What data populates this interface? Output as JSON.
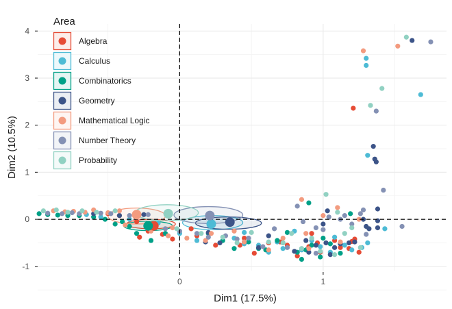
{
  "chart_data": {
    "type": "scatter",
    "title": "",
    "xlabel": "Dim1 (17.5%)",
    "ylabel": "Dim2 (10.5%)",
    "xlim": [
      -0.99,
      1.86
    ],
    "ylim": [
      -1.09,
      4.15
    ],
    "x_ticks": [
      0,
      1
    ],
    "x_tick_labels": [
      "0",
      "1"
    ],
    "y_ticks": [
      -1,
      0,
      1,
      2,
      3,
      4
    ],
    "y_tick_labels": [
      "-1",
      "0",
      "1",
      "2",
      "3",
      "4"
    ],
    "grid": true,
    "reference_lines": {
      "x": 0,
      "y": 0,
      "style": "dashed"
    },
    "legend": {
      "title": "Area",
      "placement": "top-left",
      "entries": [
        {
          "name": "Algebra",
          "color": "#E64B35"
        },
        {
          "name": "Calculus",
          "color": "#4DBBD5"
        },
        {
          "name": "Combinatorics",
          "color": "#00A087"
        },
        {
          "name": "Geometry",
          "color": "#3C5488"
        },
        {
          "name": "Mathematical Logic",
          "color": "#F39B7F"
        },
        {
          "name": "Number Theory",
          "color": "#8491B4"
        },
        {
          "name": "Probability",
          "color": "#91D1C2"
        }
      ]
    },
    "centroids": [
      {
        "group": "Algebra",
        "x": -0.18,
        "y": -0.14
      },
      {
        "group": "Calculus",
        "x": 0.22,
        "y": -0.1
      },
      {
        "group": "Combinatorics",
        "x": -0.22,
        "y": -0.14
      },
      {
        "group": "Geometry",
        "x": 0.35,
        "y": -0.06
      },
      {
        "group": "Mathematical Logic",
        "x": -0.3,
        "y": 0.1
      },
      {
        "group": "Number Theory",
        "x": 0.21,
        "y": 0.08
      },
      {
        "group": "Probability",
        "x": -0.08,
        "y": 0.12
      }
    ],
    "ellipses": [
      {
        "group": "Algebra",
        "cx": -0.2,
        "cy": -0.1,
        "rx": 0.17,
        "ry": 0.1
      },
      {
        "group": "Calculus",
        "cx": 0.23,
        "cy": -0.07,
        "rx": 0.21,
        "ry": 0.15
      },
      {
        "group": "Combinatorics",
        "cx": -0.22,
        "cy": -0.14,
        "rx": 0.17,
        "ry": 0.1
      },
      {
        "group": "Geometry",
        "cx": 0.34,
        "cy": -0.08,
        "rx": 0.23,
        "ry": 0.13
      },
      {
        "group": "Mathematical Logic",
        "cx": -0.3,
        "cy": 0.07,
        "rx": 0.2,
        "ry": 0.17
      },
      {
        "group": "Number Theory",
        "cx": 0.2,
        "cy": 0.09,
        "rx": 0.24,
        "ry": 0.18
      },
      {
        "group": "Probability",
        "cx": -0.09,
        "cy": 0.14,
        "rx": 0.22,
        "ry": 0.17
      }
    ],
    "series": [
      {
        "name": "Algebra",
        "points": [
          [
            -0.5,
            0.12
          ],
          [
            -0.42,
            0.08
          ],
          [
            -0.3,
            -0.05
          ],
          [
            -0.28,
            -0.38
          ],
          [
            -0.22,
            -0.25
          ],
          [
            -0.12,
            -0.32
          ],
          [
            -0.05,
            -0.42
          ],
          [
            0.08,
            -0.2
          ],
          [
            0.12,
            -0.35
          ],
          [
            0.25,
            -0.55
          ],
          [
            0.42,
            -0.55
          ],
          [
            0.45,
            -0.4
          ],
          [
            0.52,
            -0.72
          ],
          [
            0.62,
            -0.5
          ],
          [
            0.7,
            -0.48
          ],
          [
            0.75,
            -0.55
          ],
          [
            0.82,
            -0.78
          ],
          [
            0.9,
            -0.58
          ],
          [
            0.96,
            -0.5
          ],
          [
            0.98,
            -0.7
          ],
          [
            1.08,
            -0.45
          ],
          [
            1.12,
            -0.6
          ],
          [
            1.2,
            -0.47
          ],
          [
            1.22,
            -0.42
          ],
          [
            1.18,
            -0.62
          ],
          [
            0.92,
            -0.3
          ],
          [
            1.21,
            2.36
          ],
          [
            1.25,
            -0.7
          ]
        ]
      },
      {
        "name": "Calculus",
        "points": [
          [
            -0.65,
            0.1
          ],
          [
            -0.55,
            0.05
          ],
          [
            -0.35,
            0.0
          ],
          [
            -0.15,
            -0.08
          ],
          [
            0.0,
            -0.3
          ],
          [
            0.12,
            -0.45
          ],
          [
            0.22,
            -0.06
          ],
          [
            0.38,
            -0.4
          ],
          [
            0.45,
            -0.52
          ],
          [
            0.55,
            -0.55
          ],
          [
            0.62,
            -0.7
          ],
          [
            0.68,
            -0.48
          ],
          [
            0.72,
            -0.62
          ],
          [
            0.8,
            -0.25
          ],
          [
            0.85,
            -0.65
          ],
          [
            0.92,
            -0.45
          ],
          [
            0.98,
            -0.58
          ],
          [
            1.05,
            -0.7
          ],
          [
            1.08,
            -0.38
          ],
          [
            1.15,
            -0.55
          ],
          [
            1.2,
            -0.65
          ],
          [
            1.27,
            -0.6
          ],
          [
            1.3,
            3.42
          ],
          [
            1.3,
            3.27
          ],
          [
            1.31,
            1.36
          ],
          [
            1.31,
            -0.5
          ],
          [
            1.43,
            -0.2
          ],
          [
            1.68,
            2.65
          ],
          [
            0.45,
            -0.28
          ]
        ]
      },
      {
        "name": "Combinatorics",
        "points": [
          [
            -0.98,
            0.12
          ],
          [
            -0.92,
            0.1
          ],
          [
            -0.85,
            0.09
          ],
          [
            -0.78,
            0.08
          ],
          [
            -0.7,
            0.08
          ],
          [
            -0.6,
            0.05
          ],
          [
            -0.52,
            0.0
          ],
          [
            -0.45,
            -0.1
          ],
          [
            -0.4,
            -0.05
          ],
          [
            -0.35,
            -0.15
          ],
          [
            -0.3,
            -0.3
          ],
          [
            -0.22,
            -0.14
          ],
          [
            -0.1,
            -0.3
          ],
          [
            -0.2,
            -0.45
          ],
          [
            0.2,
            -0.3
          ],
          [
            0.3,
            -0.45
          ],
          [
            0.38,
            -0.62
          ],
          [
            0.48,
            -0.48
          ],
          [
            0.55,
            -0.62
          ],
          [
            0.6,
            -0.65
          ],
          [
            0.68,
            -0.45
          ],
          [
            0.75,
            -0.28
          ],
          [
            0.82,
            -0.7
          ],
          [
            0.88,
            -0.65
          ],
          [
            0.92,
            -0.55
          ],
          [
            0.98,
            -0.8
          ],
          [
            1.05,
            -0.52
          ],
          [
            1.12,
            -0.72
          ],
          [
            1.0,
            -0.4
          ],
          [
            0.9,
            0.35
          ],
          [
            1.19,
            0.12
          ],
          [
            0.85,
            -0.85
          ]
        ]
      },
      {
        "name": "Geometry",
        "points": [
          [
            -0.6,
            0.12
          ],
          [
            -0.42,
            0.08
          ],
          [
            -0.25,
            0.1
          ],
          [
            0.18,
            -0.48
          ],
          [
            0.2,
            -0.28
          ],
          [
            0.28,
            -0.5
          ],
          [
            0.35,
            -0.06
          ],
          [
            0.45,
            -0.48
          ],
          [
            0.55,
            -0.6
          ],
          [
            0.62,
            -0.35
          ],
          [
            0.72,
            -0.5
          ],
          [
            0.8,
            -0.68
          ],
          [
            0.88,
            -0.45
          ],
          [
            0.95,
            -0.55
          ],
          [
            1.0,
            -0.1
          ],
          [
            1.02,
            -0.5
          ],
          [
            1.08,
            -0.6
          ],
          [
            1.12,
            -0.52
          ],
          [
            1.18,
            -0.5
          ],
          [
            1.22,
            -0.48
          ],
          [
            1.28,
            0.0
          ],
          [
            1.3,
            -0.15
          ],
          [
            1.32,
            -0.2
          ],
          [
            1.35,
            1.55
          ],
          [
            1.36,
            1.28
          ],
          [
            1.37,
            1.22
          ],
          [
            1.38,
            -0.03
          ],
          [
            1.38,
            -0.18
          ],
          [
            1.38,
            0.22
          ],
          [
            1.62,
            3.8
          ],
          [
            1.03,
            0.18
          ],
          [
            0.9,
            -0.7
          ],
          [
            1.05,
            -0.75
          ]
        ]
      },
      {
        "name": "Mathematical Logic",
        "points": [
          [
            -0.88,
            0.18
          ],
          [
            -0.8,
            0.16
          ],
          [
            -0.74,
            0.17
          ],
          [
            -0.66,
            0.15
          ],
          [
            -0.6,
            0.2
          ],
          [
            -0.5,
            0.14
          ],
          [
            -0.42,
            0.18
          ],
          [
            -0.38,
            -0.12
          ],
          [
            -0.3,
            0.1
          ],
          [
            -0.2,
            -0.25
          ],
          [
            -0.08,
            -0.35
          ],
          [
            -0.05,
            -0.18
          ],
          [
            0.05,
            -0.4
          ],
          [
            0.18,
            -0.45
          ],
          [
            0.22,
            -0.3
          ],
          [
            0.38,
            -0.25
          ],
          [
            0.45,
            -0.48
          ],
          [
            0.62,
            -0.65
          ],
          [
            0.72,
            -0.4
          ],
          [
            0.85,
            0.42
          ],
          [
            0.88,
            -0.3
          ],
          [
            0.9,
            -0.62
          ],
          [
            1.0,
            0.08
          ],
          [
            1.12,
            -0.48
          ],
          [
            1.28,
            3.58
          ],
          [
            1.52,
            3.68
          ],
          [
            1.25,
            0.0
          ],
          [
            1.1,
            0.25
          ]
        ]
      },
      {
        "name": "Number Theory",
        "points": [
          [
            -0.92,
            0.13
          ],
          [
            -0.82,
            0.12
          ],
          [
            -0.75,
            0.14
          ],
          [
            -0.7,
            0.12
          ],
          [
            -0.55,
            0.13
          ],
          [
            -0.48,
            0.12
          ],
          [
            -0.35,
            0.08
          ],
          [
            -0.22,
            0.1
          ],
          [
            -0.1,
            -0.2
          ],
          [
            0.0,
            -0.25
          ],
          [
            0.12,
            -0.3
          ],
          [
            0.2,
            -0.38
          ],
          [
            0.21,
            0.08
          ],
          [
            0.32,
            -0.35
          ],
          [
            0.4,
            -0.42
          ],
          [
            0.48,
            -0.4
          ],
          [
            0.58,
            -0.58
          ],
          [
            0.66,
            -0.2
          ],
          [
            0.75,
            -0.6
          ],
          [
            0.82,
            0.28
          ],
          [
            0.86,
            -0.05
          ],
          [
            0.95,
            -0.18
          ],
          [
            1.0,
            -0.22
          ],
          [
            1.04,
            0.05
          ],
          [
            1.12,
            0.0
          ],
          [
            1.15,
            0.08
          ],
          [
            1.2,
            -0.1
          ],
          [
            1.26,
            0.12
          ],
          [
            1.28,
            0.2
          ],
          [
            1.37,
            2.3
          ],
          [
            1.42,
            0.62
          ],
          [
            1.55,
            -0.15
          ],
          [
            1.75,
            3.77
          ],
          [
            1.3,
            -0.32
          ],
          [
            0.95,
            -0.72
          ]
        ]
      },
      {
        "name": "Probability",
        "points": [
          [
            -0.95,
            0.18
          ],
          [
            -0.86,
            0.2
          ],
          [
            -0.78,
            0.15
          ],
          [
            -0.68,
            0.18
          ],
          [
            -0.58,
            0.15
          ],
          [
            -0.45,
            0.18
          ],
          [
            -0.08,
            0.12
          ],
          [
            -0.02,
            -0.2
          ],
          [
            0.15,
            -0.3
          ],
          [
            0.3,
            -0.38
          ],
          [
            0.4,
            -0.5
          ],
          [
            0.5,
            -0.28
          ],
          [
            0.62,
            -0.48
          ],
          [
            0.72,
            -0.5
          ],
          [
            0.78,
            -0.3
          ],
          [
            0.85,
            -0.62
          ],
          [
            0.92,
            -0.4
          ],
          [
            0.98,
            -0.68
          ],
          [
            1.02,
            0.53
          ],
          [
            1.1,
            0.15
          ],
          [
            1.15,
            -0.3
          ],
          [
            1.2,
            -0.18
          ],
          [
            1.26,
            -0.6
          ],
          [
            1.33,
            2.42
          ],
          [
            1.41,
            2.78
          ],
          [
            1.58,
            3.87
          ],
          [
            1.08,
            -0.75
          ]
        ]
      }
    ]
  }
}
